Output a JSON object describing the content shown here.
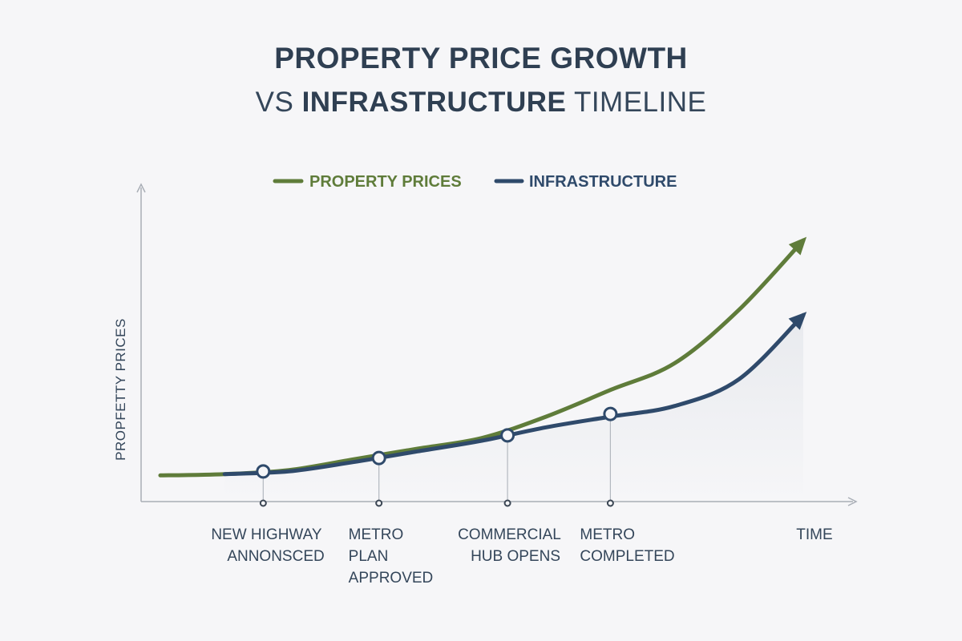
{
  "title": {
    "line1": "PROPERTY PRICE GROWTH",
    "line2_prefix": "VS",
    "line2_bold": "INFRASTRUCTURE",
    "line2_suffix": "TIMELINE"
  },
  "colors": {
    "property_prices": "#5f7c3a",
    "infrastructure": "#2f4a6b",
    "axis": "#a9aeb6",
    "text": "#34465a",
    "background": "#f6f6f8"
  },
  "chart_data": {
    "type": "line",
    "xlabel": "TIME",
    "ylabel": "PROPFETTY PRICES",
    "legend_position": "top-center",
    "grid": false,
    "axis_ticks_numeric": false,
    "x": [
      0,
      1,
      2,
      3,
      4,
      5,
      6,
      7,
      8,
      9,
      10
    ],
    "series": [
      {
        "name": "PROPERTY PRICES",
        "color": "#5f7c3a",
        "values": [
          2,
          2.5,
          4,
          8,
          12,
          16,
          24,
          34,
          44,
          64,
          90
        ]
      },
      {
        "name": "INFRASTRUCTURE",
        "color": "#2f4a6b",
        "values": [
          null,
          2.5,
          3.5,
          7,
          11,
          15,
          20,
          24,
          28,
          38,
          62
        ]
      }
    ],
    "milestones": [
      {
        "x": 1.6,
        "value": 3.5,
        "label_lines": [
          "NEW HIGHWAY",
          "ANNONSCED"
        ]
      },
      {
        "x": 3.4,
        "value": 8.5,
        "label_lines": [
          "METRO",
          "PLAN",
          "APPROVED"
        ]
      },
      {
        "x": 5.4,
        "value": 17,
        "label_lines": [
          "COMMERCIAL",
          "HUB OPENS"
        ]
      },
      {
        "x": 7.0,
        "value": 25,
        "label_lines": [
          "METRO",
          "COMPLETED"
        ]
      }
    ]
  }
}
